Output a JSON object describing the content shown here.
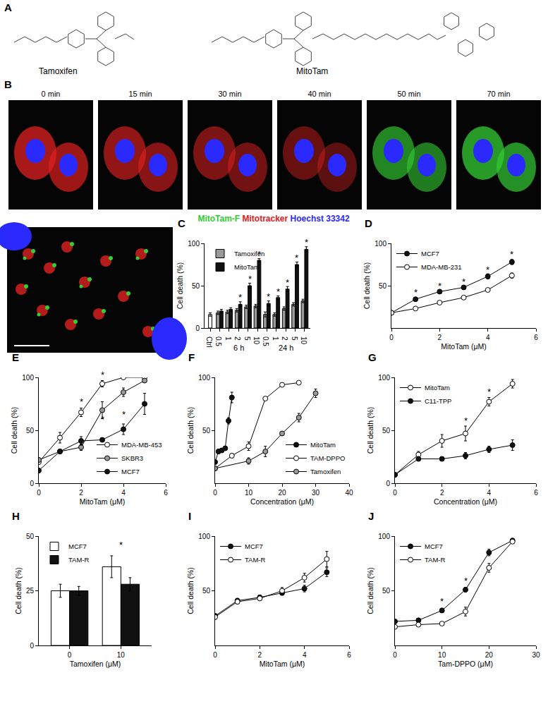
{
  "figure_panels": {
    "A": {
      "label": "A",
      "compounds": [
        "Tamoxifen",
        "MitoTam"
      ]
    },
    "B": {
      "label": "B",
      "times": [
        "0 min",
        "15 min",
        "30 min",
        "40 min",
        "50 min",
        "70 min"
      ],
      "channels": [
        {
          "name": "MitoTam-F",
          "color": "#33cc33"
        },
        {
          "name": "Mitotracker",
          "color": "#e02020"
        },
        {
          "name": "Hoechst 33342",
          "color": "#2a2aff"
        }
      ]
    }
  },
  "chart_data": [
    {
      "type": "bar",
      "title": "C",
      "categories": [
        "Ctrl",
        "0.5",
        "1",
        "2",
        "5",
        "10",
        "0.5",
        "1",
        "2",
        "5",
        "10"
      ],
      "category_groups": [
        null,
        "6 h",
        "6 h",
        "6 h",
        "6 h",
        "6 h",
        "24 h",
        "24 h",
        "24 h",
        "24 h",
        "24 h"
      ],
      "control": {
        "value": 16,
        "error": 2,
        "color": "#ffffff"
      },
      "series": [
        {
          "name": "Tamoxifen",
          "color": "#9a9a9a",
          "values": [
            null,
            18,
            19,
            21,
            25,
            26,
            16,
            16,
            23,
            28,
            32
          ],
          "errors": [
            null,
            2,
            2,
            2,
            2,
            2,
            3,
            2,
            2,
            2,
            2
          ]
        },
        {
          "name": "MitoTam",
          "color": "#111111",
          "values": [
            null,
            20,
            22,
            28,
            50,
            80,
            29,
            36,
            46,
            75,
            93
          ],
          "errors": [
            null,
            2,
            2,
            3,
            3,
            2,
            3,
            2,
            3,
            3,
            3
          ]
        }
      ],
      "ylabel": "Cell death (%)",
      "ylim": [
        0,
        100
      ],
      "yticks": [
        0,
        50,
        100
      ],
      "legend": "top left",
      "grid": false,
      "annotations": [
        {
          "text": "*",
          "x": 3,
          "y": 33,
          "series": "MitoTam"
        },
        {
          "text": "*",
          "x": 4,
          "y": 55,
          "series": "MitoTam"
        },
        {
          "text": "*",
          "x": 5,
          "y": 84,
          "series": "MitoTam"
        },
        {
          "text": "*",
          "x": 6,
          "y": 34,
          "series": "MitoTam"
        },
        {
          "text": "*",
          "x": 7,
          "y": 40,
          "series": "MitoTam"
        },
        {
          "text": "*",
          "x": 8,
          "y": 51,
          "series": "MitoTam"
        },
        {
          "text": "*",
          "x": 9,
          "y": 80,
          "series": "MitoTam"
        },
        {
          "text": "*",
          "x": 10,
          "y": 98,
          "series": "MitoTam"
        }
      ]
    },
    {
      "type": "line",
      "title": "D",
      "x": [
        0,
        1,
        2,
        3,
        4,
        5
      ],
      "series": [
        {
          "name": "MCF7",
          "color": "#111111",
          "marker": "circle",
          "values": [
            18,
            34,
            43,
            48,
            61,
            78
          ],
          "errors": [
            1,
            2,
            2,
            2,
            3,
            3
          ]
        },
        {
          "name": "MDA-MB-231",
          "color": "#ffffff",
          "marker": "circle",
          "values": [
            18,
            23,
            30,
            36,
            45,
            62
          ],
          "errors": [
            1,
            1,
            1,
            1,
            1,
            3
          ]
        }
      ],
      "xlabel": "MitoTam (μM)",
      "ylabel": "Cell death (%)",
      "xlim": [
        0,
        6
      ],
      "xticks": [
        0,
        2,
        4,
        6
      ],
      "ylim": [
        0,
        100
      ],
      "yticks": [
        50,
        100
      ],
      "legend": "top left",
      "grid": false,
      "annotations": [
        {
          "text": "*",
          "x": 1,
          "y": 39
        },
        {
          "text": "*",
          "x": 2,
          "y": 47
        },
        {
          "text": "*",
          "x": 3,
          "y": 52
        },
        {
          "text": "*",
          "x": 4,
          "y": 66
        },
        {
          "text": "*",
          "x": 5,
          "y": 84
        }
      ]
    },
    {
      "type": "line",
      "title": "E",
      "x": [
        0,
        1,
        2,
        3,
        4,
        5
      ],
      "series": [
        {
          "name": "MDA-MB-453",
          "color": "#ffffff",
          "marker": "circle",
          "values": [
            20,
            43,
            67,
            94,
            100,
            100
          ],
          "errors": [
            2,
            5,
            4,
            3,
            1,
            1
          ]
        },
        {
          "name": "SKBR3",
          "color": "#9a9a9a",
          "marker": "circle",
          "values": [
            22,
            30,
            34,
            69,
            86,
            97
          ],
          "errors": [
            2,
            2,
            3,
            8,
            4,
            2
          ]
        },
        {
          "name": "MCF7",
          "color": "#111111",
          "marker": "circle",
          "values": [
            12,
            30,
            40,
            41,
            51,
            75
          ],
          "errors": [
            2,
            2,
            4,
            2,
            5,
            10
          ]
        }
      ],
      "xlabel": "MitoTam (μM)",
      "ylabel": "Cell death (%)",
      "xlim": [
        0,
        6
      ],
      "xticks": [
        0,
        2,
        4,
        6
      ],
      "ylim": [
        0,
        100
      ],
      "yticks": [
        0,
        50,
        100
      ],
      "legend": "bottom right",
      "grid": false,
      "annotations": [
        {
          "text": "*",
          "x": 2,
          "y": 75
        },
        {
          "text": "*",
          "x": 3,
          "y": 100
        },
        {
          "text": "*",
          "x": 3,
          "y": 58
        },
        {
          "text": "*",
          "x": 4,
          "y": 104
        },
        {
          "text": "*",
          "x": 4,
          "y": 63
        },
        {
          "text": "*",
          "x": 5,
          "y": 104
        }
      ]
    },
    {
      "type": "line",
      "title": "F",
      "series": [
        {
          "name": "MitoTam",
          "color": "#111111",
          "marker": "circle",
          "x": [
            0,
            1,
            2,
            3,
            4,
            5
          ],
          "values": [
            20,
            30,
            31,
            33,
            59,
            81
          ],
          "errors": [
            2,
            2,
            2,
            2,
            3,
            5
          ]
        },
        {
          "name": "TAM-DPPO",
          "color": "#ffffff",
          "marker": "circle",
          "x": [
            0,
            5,
            10,
            15,
            20,
            25
          ],
          "values": [
            14,
            26,
            35,
            80,
            93,
            95
          ],
          "errors": [
            1,
            2,
            4,
            1,
            1,
            1
          ]
        },
        {
          "name": "Tamoxifen",
          "color": "#9a9a9a",
          "marker": "circle",
          "x": [
            0,
            10,
            15,
            20,
            25,
            30
          ],
          "values": [
            14,
            21,
            30,
            47,
            62,
            85
          ],
          "errors": [
            1,
            3,
            5,
            2,
            4,
            4
          ]
        }
      ],
      "xlabel": "Concentration (μM)",
      "ylabel": "Cell death (%)",
      "xlim": [
        0,
        40
      ],
      "xticks": [
        0,
        10,
        20,
        30,
        40
      ],
      "ylim": [
        0,
        100
      ],
      "yticks": [
        50,
        100
      ],
      "legend": "bottom right",
      "grid": false
    },
    {
      "type": "line",
      "title": "G",
      "x": [
        0,
        1,
        2,
        3,
        4,
        5
      ],
      "series": [
        {
          "name": "MitoTam",
          "color": "#ffffff",
          "marker": "circle",
          "values": [
            8,
            27,
            40,
            47,
            77,
            94
          ],
          "errors": [
            1,
            3,
            6,
            7,
            4,
            4
          ]
        },
        {
          "name": "C11-TPP",
          "color": "#111111",
          "marker": "circle",
          "values": [
            8,
            23,
            23,
            26,
            32,
            36
          ],
          "errors": [
            1,
            2,
            2,
            3,
            3,
            5
          ]
        }
      ],
      "xlabel": "Concentration (μM)",
      "ylabel": "Cell death (%)",
      "xlim": [
        0,
        6
      ],
      "xticks": [
        0,
        2,
        4,
        6
      ],
      "ylim": [
        0,
        100
      ],
      "yticks": [
        0,
        50,
        100
      ],
      "legend": "top left",
      "grid": false,
      "annotations": [
        {
          "text": "*",
          "x": 3,
          "y": 57
        },
        {
          "text": "*",
          "x": 4,
          "y": 84
        },
        {
          "text": "*",
          "x": 5,
          "y": 101
        }
      ]
    },
    {
      "type": "bar",
      "title": "H",
      "categories": [
        "0",
        "10"
      ],
      "series": [
        {
          "name": "MCF7",
          "color": "#ffffff",
          "values": [
            25,
            36
          ],
          "errors": [
            3,
            5
          ]
        },
        {
          "name": "TAM-R",
          "color": "#111111",
          "values": [
            25,
            28
          ],
          "errors": [
            2,
            3
          ]
        }
      ],
      "xlabel": "Tamoxifen (μM)",
      "ylabel": "Cell death (%)",
      "ylim": [
        0,
        50
      ],
      "yticks": [
        0,
        25,
        50
      ],
      "legend": "top left",
      "grid": false,
      "annotations": [
        {
          "text": "*",
          "x": 1,
          "y": 45
        }
      ]
    },
    {
      "type": "line",
      "title": "I",
      "x": [
        0,
        1,
        2,
        3,
        4,
        5
      ],
      "series": [
        {
          "name": "MCF7",
          "color": "#111111",
          "marker": "circle",
          "values": [
            27,
            41,
            44,
            48,
            52,
            67
          ],
          "errors": [
            2,
            2,
            2,
            2,
            3,
            4
          ]
        },
        {
          "name": "TAM-R",
          "color": "#ffffff",
          "marker": "circle",
          "values": [
            26,
            40,
            43,
            50,
            62,
            79
          ],
          "errors": [
            2,
            2,
            2,
            3,
            4,
            7
          ]
        }
      ],
      "xlabel": "MitoTam (μM)",
      "ylabel": "Cell death (%)",
      "xlim": [
        0,
        6
      ],
      "xticks": [
        0,
        2,
        4,
        6
      ],
      "ylim": [
        0,
        100
      ],
      "yticks": [
        50,
        100
      ],
      "legend": "top left",
      "grid": false
    },
    {
      "type": "line",
      "title": "J",
      "x": [
        0,
        5,
        10,
        15,
        20,
        25
      ],
      "series": [
        {
          "name": "MCF7",
          "color": "#111111",
          "marker": "circle",
          "values": [
            22,
            23,
            32,
            51,
            85,
            96
          ],
          "errors": [
            1,
            1,
            2,
            2,
            3,
            1
          ]
        },
        {
          "name": "TAM-R",
          "color": "#ffffff",
          "marker": "circle",
          "values": [
            17,
            19,
            20,
            31,
            71,
            95
          ],
          "errors": [
            1,
            1,
            1,
            4,
            4,
            1
          ]
        }
      ],
      "xlabel": "Tam-DPPO (μM)",
      "ylabel": "Cell death (%)",
      "xlim": [
        0,
        30
      ],
      "xticks": [
        0,
        10,
        20,
        30
      ],
      "ylim": [
        0,
        100
      ],
      "yticks": [
        50,
        100
      ],
      "legend": "top left",
      "grid": false,
      "annotations": [
        {
          "text": "*",
          "x": 10,
          "y": 38
        },
        {
          "text": "*",
          "x": 15,
          "y": 57
        }
      ]
    }
  ]
}
